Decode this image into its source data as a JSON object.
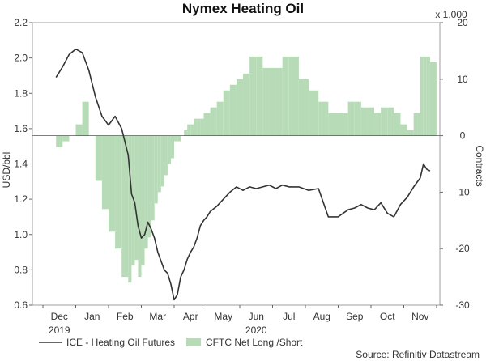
{
  "chart_data": {
    "type": "line",
    "title": "Nymex Heating Oil",
    "left_axis": {
      "label": "USD/bbl",
      "range": [
        0.6,
        2.2
      ],
      "ticks": [
        "0.6",
        "0.8",
        "1.0",
        "1.2",
        "1.4",
        "1.6",
        "1.8",
        "2.0",
        "2.2"
      ]
    },
    "right_axis": {
      "label": "Contracts",
      "multiplier": "x 1,000",
      "range": [
        -30,
        20
      ],
      "ticks": [
        "-30",
        "-20",
        "-10",
        "0",
        "10",
        "20"
      ]
    },
    "x_axis": {
      "month_labels": [
        "Dec",
        "Jan",
        "Feb",
        "Mar",
        "Apr",
        "May",
        "Jun",
        "Jul",
        "Aug",
        "Sep",
        "Oct",
        "Nov"
      ],
      "year_labels": [
        {
          "label": "2019",
          "month_index": 0
        },
        {
          "label": "2020",
          "month_index": 6
        }
      ]
    },
    "legend": {
      "position": "bottom",
      "items": [
        {
          "name": "ICE - Heating Oil Futures",
          "kind": "line",
          "color": "#333333"
        },
        {
          "name": "CFTC Net Long /Short",
          "kind": "area",
          "color": "#b7dbb7"
        }
      ]
    },
    "series": [
      {
        "name": "ICE - Heating Oil Futures",
        "axis": "left",
        "x": [
          -0.1,
          0.1,
          0.3,
          0.5,
          0.7,
          0.9,
          1.1,
          1.3,
          1.5,
          1.7,
          1.9,
          2.1,
          2.2,
          2.3,
          2.4,
          2.5,
          2.6,
          2.7,
          2.8,
          2.9,
          3.0,
          3.1,
          3.2,
          3.3,
          3.4,
          3.5,
          3.6,
          3.7,
          3.8,
          3.9,
          4.0,
          4.1,
          4.2,
          4.3,
          4.4,
          4.5,
          4.6,
          4.8,
          5.0,
          5.2,
          5.4,
          5.6,
          5.8,
          6.0,
          6.2,
          6.4,
          6.6,
          6.8,
          7.0,
          7.3,
          7.6,
          7.9,
          8.2,
          8.5,
          8.8,
          9.0,
          9.2,
          9.4,
          9.6,
          9.8,
          10.0,
          10.2,
          10.4,
          10.6,
          10.8,
          11.0,
          11.1,
          11.2,
          11.3
        ],
        "values": [
          1.89,
          1.95,
          2.02,
          2.05,
          2.03,
          1.93,
          1.78,
          1.67,
          1.62,
          1.67,
          1.6,
          1.45,
          1.23,
          1.18,
          1.05,
          0.98,
          1.0,
          1.07,
          1.03,
          0.98,
          0.9,
          0.85,
          0.8,
          0.78,
          0.72,
          0.63,
          0.66,
          0.76,
          0.8,
          0.86,
          0.9,
          0.93,
          0.98,
          1.05,
          1.08,
          1.1,
          1.13,
          1.16,
          1.2,
          1.24,
          1.27,
          1.25,
          1.27,
          1.26,
          1.27,
          1.28,
          1.26,
          1.28,
          1.27,
          1.27,
          1.25,
          1.26,
          1.1,
          1.1,
          1.14,
          1.15,
          1.17,
          1.15,
          1.14,
          1.18,
          1.12,
          1.1,
          1.17,
          1.21,
          1.27,
          1.32,
          1.4,
          1.37,
          1.36
        ]
      },
      {
        "name": "CFTC Net Long /Short",
        "axis": "right",
        "x": [
          -0.1,
          0.1,
          0.3,
          0.5,
          0.7,
          0.9,
          1.1,
          1.3,
          1.5,
          1.7,
          1.9,
          2.1,
          2.2,
          2.3,
          2.4,
          2.5,
          2.6,
          2.7,
          2.8,
          2.9,
          3.0,
          3.1,
          3.2,
          3.3,
          3.4,
          3.5,
          3.6,
          3.7,
          3.8,
          3.9,
          4.0,
          4.1,
          4.2,
          4.3,
          4.4,
          4.5,
          4.6,
          4.8,
          5.0,
          5.2,
          5.4,
          5.6,
          5.8,
          6.0,
          6.2,
          6.4,
          6.6,
          6.8,
          7.0,
          7.3,
          7.6,
          7.9,
          8.2,
          8.5,
          8.8,
          9.0,
          9.2,
          9.4,
          9.6,
          9.8,
          10.0,
          10.2,
          10.4,
          10.6,
          10.8,
          11.0,
          11.1,
          11.2,
          11.3
        ],
        "values": [
          -2,
          -1,
          0,
          2,
          6,
          0,
          -8,
          -13,
          -17,
          -20,
          -25,
          -26,
          -23,
          -22,
          -25,
          -23,
          -20,
          -18,
          -15,
          -12,
          -10,
          -9,
          -7,
          -5,
          -4,
          -1,
          -1,
          0,
          1,
          2,
          2,
          3,
          3,
          3,
          4,
          4,
          5,
          6,
          8,
          9,
          10,
          11,
          14,
          14,
          12,
          12,
          12,
          14,
          14,
          10,
          8,
          6,
          4,
          4,
          6,
          6,
          5,
          5,
          4,
          5,
          5,
          4,
          2,
          1,
          4,
          14,
          14,
          14,
          13
        ]
      }
    ]
  },
  "source_label": "Source: Refinitiv Datastream"
}
